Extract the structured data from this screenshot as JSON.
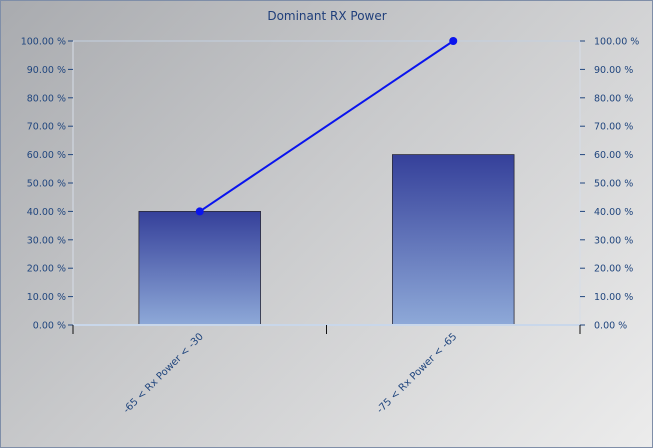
{
  "chart_data": {
    "type": "bar",
    "title": "Dominant RX Power",
    "categories": [
      "-65 < Rx Power < -30",
      "-75 < Rx Power < -65"
    ],
    "series": [
      {
        "type": "bar",
        "values": [
          40,
          60
        ]
      },
      {
        "type": "line",
        "values": [
          40,
          100
        ]
      }
    ],
    "ylim": [
      0,
      100
    ],
    "y_ticks": [
      "0.00 %",
      "10.00 %",
      "20.00 %",
      "30.00 %",
      "40.00 %",
      "50.00 %",
      "60.00 %",
      "70.00 %",
      "80.00 %",
      "90.00 %",
      "100.00 %"
    ],
    "y2_ticks": [
      "0.00 %",
      "10.00 %",
      "20.00 %",
      "30.00 %",
      "40.00 %",
      "50.00 %",
      "60.00 %",
      "70.00 %",
      "80.00 %",
      "90.00 %",
      "100.00 %"
    ],
    "grid": false,
    "legend": "none",
    "colors": {
      "line": "#0a14ee",
      "bar_top": "#35409a",
      "bar_bottom": "#8ea9d8",
      "text": "#21467e"
    }
  }
}
